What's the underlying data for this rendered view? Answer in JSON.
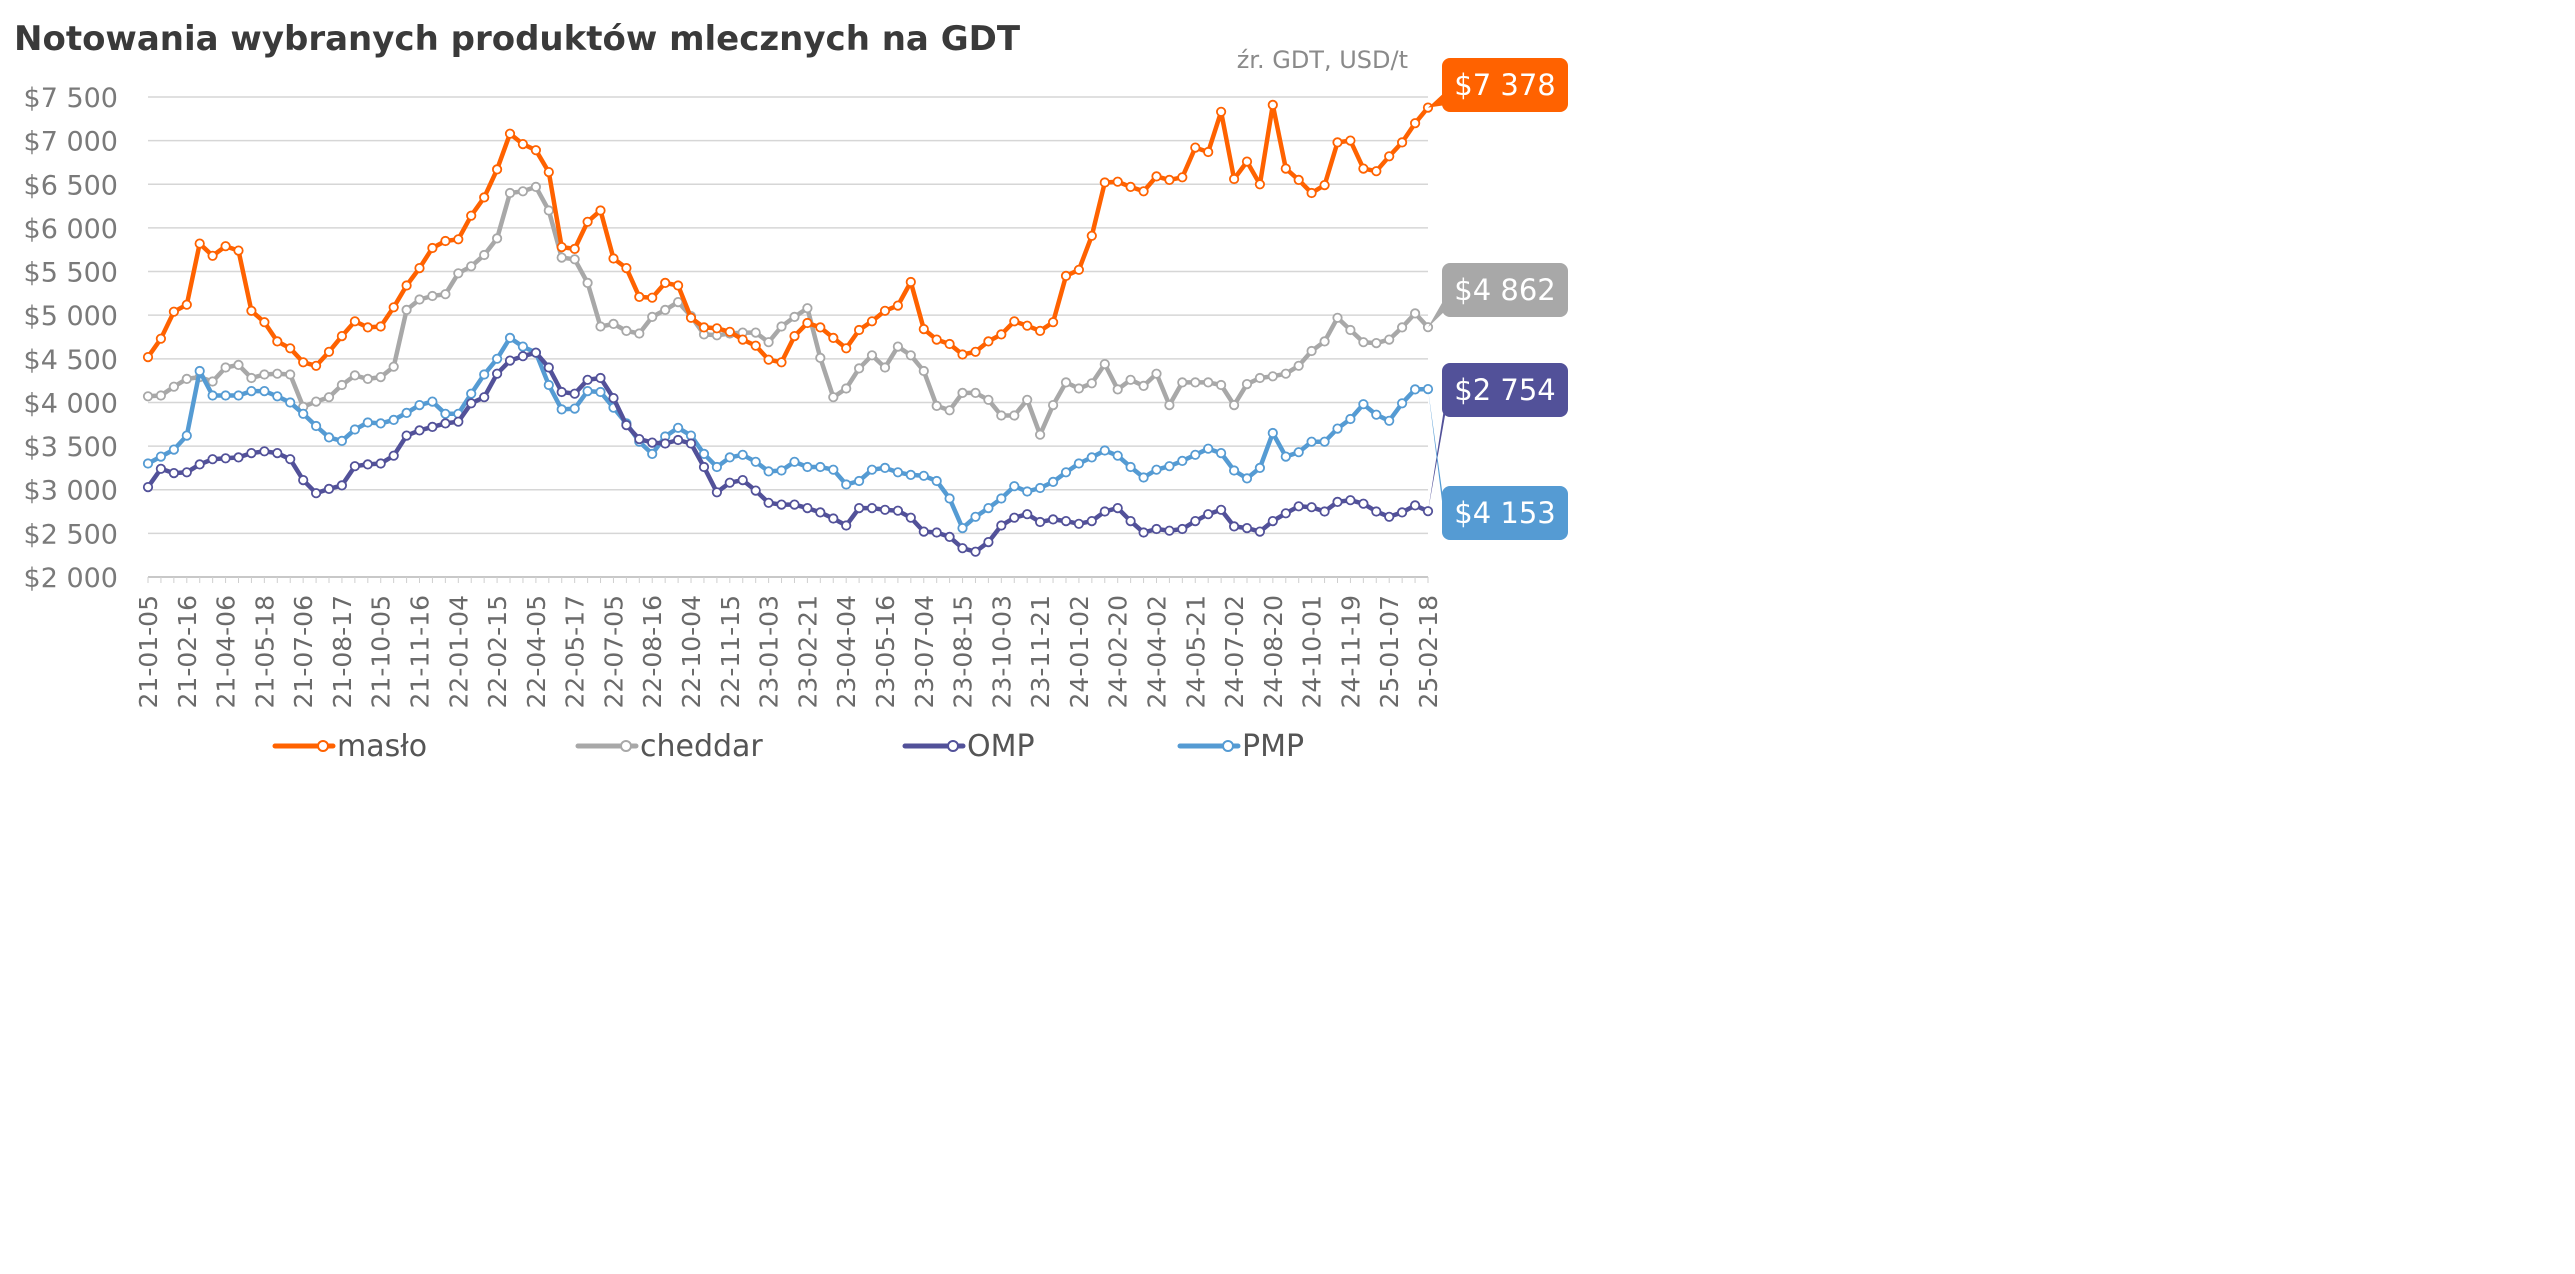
{
  "chart_data": {
    "type": "line",
    "title": "Notowania wybranych produktów mlecznych na GDT",
    "subtitle": "źr. GDT, USD/t",
    "ylim": [
      2000,
      7500
    ],
    "yticks": [
      2000,
      2500,
      3000,
      3500,
      4000,
      4500,
      5000,
      5500,
      6000,
      6500,
      7000,
      7500
    ],
    "ytick_labels": [
      "$2 000",
      "$2 500",
      "$3 000",
      "$3 500",
      "$4 000",
      "$4 500",
      "$5 000",
      "$5 500",
      "$6 000",
      "$6 500",
      "$7 000",
      "$7 500"
    ],
    "x_tick_labels": [
      "21-01-05",
      "21-02-16",
      "21-04-06",
      "21-05-18",
      "21-07-06",
      "21-08-17",
      "21-10-05",
      "21-11-16",
      "22-01-04",
      "22-02-15",
      "22-04-05",
      "22-05-17",
      "22-07-05",
      "22-08-16",
      "22-10-04",
      "22-11-15",
      "23-01-03",
      "23-02-21",
      "23-04-04",
      "23-05-16",
      "23-07-04",
      "23-08-15",
      "23-10-03",
      "23-11-21",
      "24-01-02",
      "24-02-20",
      "24-04-02",
      "24-05-21",
      "24-07-02",
      "24-08-20",
      "24-10-01",
      "24-11-19",
      "25-01-07",
      "25-02-18"
    ],
    "series": [
      {
        "name": "masło",
        "color": "#ff6200",
        "end_label": "$7 378",
        "values": [
          4520,
          4730,
          5040,
          5120,
          5820,
          5680,
          5790,
          5740,
          5050,
          4920,
          4700,
          4620,
          4460,
          4420,
          4580,
          4760,
          4930,
          4860,
          4870,
          5090,
          5340,
          5540,
          5770,
          5850,
          5870,
          6140,
          6350,
          6670,
          7080,
          6960,
          6890,
          6640,
          5780,
          5760,
          6070,
          6200,
          5650,
          5540,
          5210,
          5200,
          5370,
          5340,
          4970,
          4860,
          4850,
          4810,
          4720,
          4650,
          4490,
          4460,
          4760,
          4910,
          4860,
          4740,
          4620,
          4830,
          4930,
          5050,
          5110,
          5380,
          4840,
          4720,
          4670,
          4550,
          4580,
          4700,
          4780,
          4930,
          4880,
          4820,
          4920,
          5450,
          5520,
          5910,
          6520,
          6530,
          6470,
          6420,
          6590,
          6550,
          6580,
          6920,
          6870,
          7330,
          6560,
          6760,
          6500,
          7410,
          6680,
          6550,
          6400,
          6490,
          6980,
          7000,
          6680,
          6650,
          6820,
          6980,
          7200,
          7378
        ]
      },
      {
        "name": "cheddar",
        "color": "#a8a8a8",
        "end_label": "$4 862",
        "values": [
          4070,
          4080,
          4180,
          4270,
          4290,
          4240,
          4400,
          4430,
          4280,
          4320,
          4330,
          4320,
          3950,
          4010,
          4060,
          4200,
          4310,
          4270,
          4290,
          4410,
          5060,
          5180,
          5220,
          5240,
          5480,
          5560,
          5690,
          5880,
          6400,
          6420,
          6470,
          6200,
          5660,
          5640,
          5370,
          4870,
          4900,
          4820,
          4790,
          4980,
          5060,
          5150,
          4990,
          4780,
          4770,
          4790,
          4800,
          4800,
          4690,
          4870,
          4980,
          5080,
          4510,
          4060,
          4160,
          4390,
          4540,
          4400,
          4640,
          4540,
          4360,
          3960,
          3910,
          4110,
          4110,
          4030,
          3850,
          3850,
          4030,
          3630,
          3970,
          4230,
          4160,
          4220,
          4440,
          4150,
          4260,
          4190,
          4330,
          3970,
          4230,
          4230,
          4230,
          4200,
          3970,
          4210,
          4280,
          4300,
          4330,
          4420,
          4590,
          4700,
          4970,
          4830,
          4690,
          4680,
          4720,
          4860,
          5020,
          4862
        ]
      },
      {
        "name": "OMP",
        "color": "#525199",
        "end_label": "$2 754",
        "values": [
          3030,
          3240,
          3190,
          3200,
          3290,
          3350,
          3360,
          3370,
          3420,
          3440,
          3420,
          3350,
          3110,
          2960,
          3010,
          3050,
          3270,
          3290,
          3300,
          3390,
          3620,
          3680,
          3720,
          3760,
          3780,
          3990,
          4060,
          4330,
          4480,
          4530,
          4570,
          4400,
          4120,
          4100,
          4260,
          4280,
          4050,
          3740,
          3580,
          3540,
          3530,
          3570,
          3530,
          3260,
          2970,
          3080,
          3110,
          2990,
          2850,
          2830,
          2830,
          2790,
          2740,
          2670,
          2590,
          2790,
          2790,
          2770,
          2760,
          2680,
          2520,
          2510,
          2460,
          2330,
          2290,
          2400,
          2590,
          2680,
          2720,
          2630,
          2660,
          2640,
          2610,
          2640,
          2750,
          2790,
          2640,
          2510,
          2550,
          2530,
          2550,
          2640,
          2720,
          2770,
          2580,
          2560,
          2520,
          2640,
          2730,
          2810,
          2800,
          2750,
          2860,
          2880,
          2840,
          2750,
          2690,
          2740,
          2820,
          2754
        ]
      },
      {
        "name": "PMP",
        "color": "#559bd3",
        "end_label": "$4 153",
        "values": [
          3300,
          3380,
          3460,
          3620,
          4360,
          4080,
          4080,
          4080,
          4130,
          4130,
          4070,
          4000,
          3870,
          3730,
          3600,
          3560,
          3690,
          3770,
          3760,
          3800,
          3880,
          3970,
          4010,
          3870,
          3870,
          4100,
          4320,
          4500,
          4740,
          4640,
          4570,
          4200,
          3920,
          3930,
          4130,
          4120,
          3940,
          3760,
          3550,
          3410,
          3610,
          3710,
          3620,
          3410,
          3260,
          3370,
          3400,
          3320,
          3210,
          3220,
          3320,
          3260,
          3260,
          3230,
          3060,
          3100,
          3230,
          3250,
          3200,
          3170,
          3160,
          3100,
          2900,
          2560,
          2690,
          2790,
          2900,
          3040,
          2980,
          3020,
          3090,
          3200,
          3300,
          3370,
          3450,
          3390,
          3260,
          3140,
          3230,
          3270,
          3330,
          3400,
          3470,
          3420,
          3220,
          3130,
          3250,
          3650,
          3380,
          3430,
          3550,
          3550,
          3700,
          3810,
          3980,
          3860,
          3790,
          3990,
          4150,
          4153
        ]
      }
    ],
    "legend": [
      "masło",
      "cheddar",
      "OMP",
      "PMP"
    ],
    "legend_position": "bottom"
  }
}
